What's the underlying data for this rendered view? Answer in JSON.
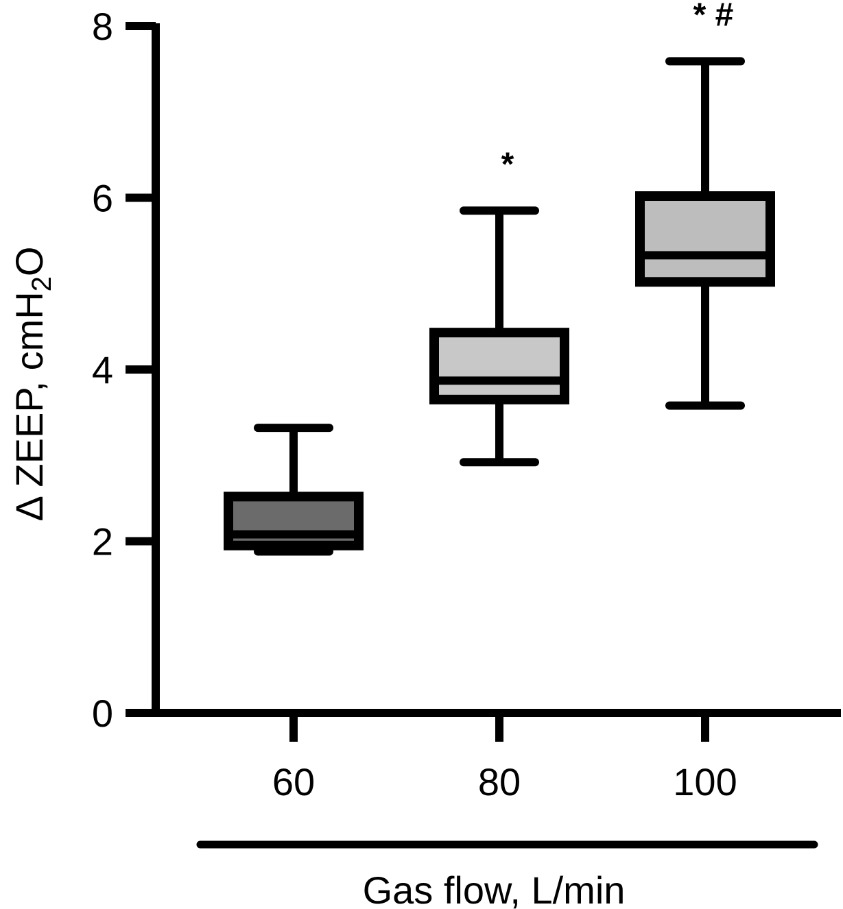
{
  "chart_data": {
    "type": "boxplot",
    "xlabel": "Gas flow, L/min",
    "ylabel_prefix": "Δ ZEEP, cmH",
    "ylabel_sub": "2",
    "ylabel_suffix": "O",
    "ylim": [
      0,
      8
    ],
    "yticks": [
      "0",
      "2",
      "4",
      "6",
      "8"
    ],
    "grid": false,
    "categories": [
      "60",
      "80",
      "100"
    ],
    "boxes": [
      {
        "category": "60",
        "min": 1.88,
        "q1": 1.95,
        "median": 2.08,
        "q3": 2.52,
        "max": 3.32,
        "fill": "#6b6b6b",
        "annotation": ""
      },
      {
        "category": "80",
        "min": 2.92,
        "q1": 3.65,
        "median": 3.87,
        "q3": 4.43,
        "max": 5.85,
        "fill": "#c8c8c8",
        "annotation": "*"
      },
      {
        "category": "100",
        "min": 3.58,
        "q1": 5.02,
        "median": 5.33,
        "q3": 6.02,
        "max": 7.59,
        "fill": "#bdbdbd",
        "annotation": "* #"
      }
    ]
  }
}
